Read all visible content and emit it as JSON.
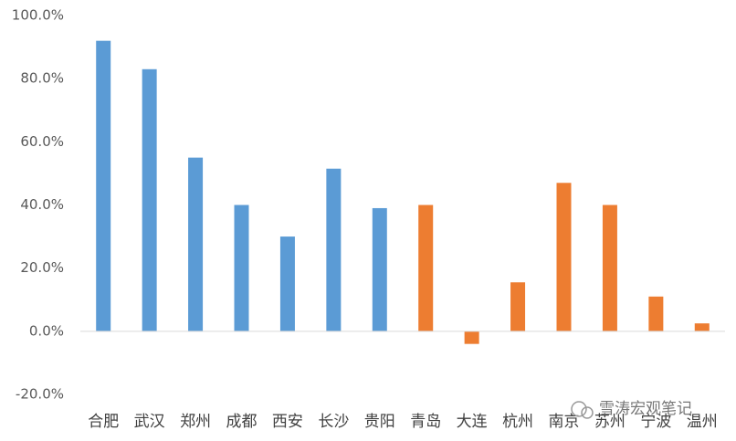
{
  "chart_data": {
    "type": "bar",
    "categories": [
      "合肥",
      "武汉",
      "郑州",
      "成都",
      "西安",
      "长沙",
      "贵阳",
      "青岛",
      "大连",
      "杭州",
      "南京",
      "苏州",
      "宁波",
      "温州"
    ],
    "values": [
      92,
      83,
      55,
      40,
      30,
      51.5,
      39,
      40,
      -4,
      15.5,
      47,
      40,
      11,
      2.5
    ],
    "colors": [
      "#5b9bd5",
      "#5b9bd5",
      "#5b9bd5",
      "#5b9bd5",
      "#5b9bd5",
      "#5b9bd5",
      "#5b9bd5",
      "#ed7d31",
      "#ed7d31",
      "#ed7d31",
      "#ed7d31",
      "#ed7d31",
      "#ed7d31",
      "#ed7d31"
    ],
    "ylim": [
      -20,
      100
    ],
    "yticks": [
      {
        "value": -20,
        "label": "-20.0%"
      },
      {
        "value": 0,
        "label": "0.0%"
      },
      {
        "value": 20,
        "label": "20.0%"
      },
      {
        "value": 40,
        "label": "40.0%"
      },
      {
        "value": 60,
        "label": "60.0%"
      },
      {
        "value": 80,
        "label": "80.0%"
      },
      {
        "value": 100,
        "label": "100.0%"
      }
    ],
    "grid": false,
    "watermark": "雪涛宏观笔记"
  }
}
